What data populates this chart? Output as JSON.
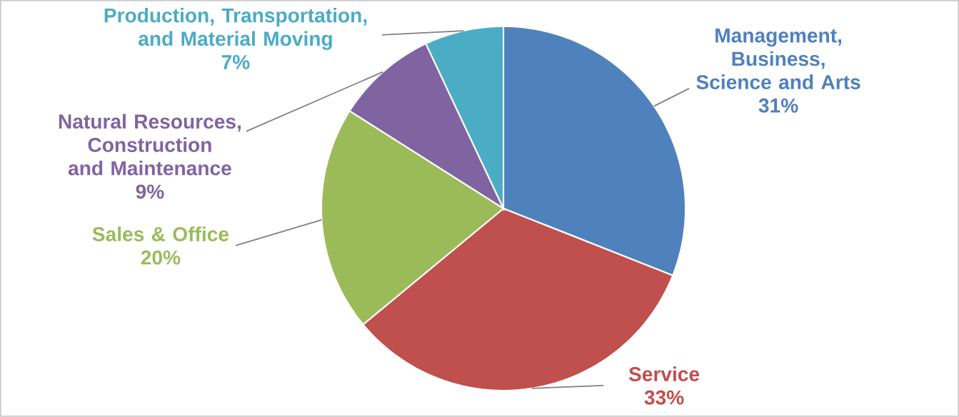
{
  "chart_data": {
    "type": "pie",
    "categories": [
      "Management, Business, Science and Arts",
      "Service",
      "Sales & Office",
      "Natural Resources, Construction and Maintenance",
      "Production, Transportation, and Material Moving"
    ],
    "values": [
      31,
      33,
      20,
      9,
      7
    ],
    "value_labels": [
      "31%",
      "33%",
      "20%",
      "9%",
      "7%"
    ],
    "colors": [
      "#4f81bd",
      "#c0504d",
      "#9bbb59",
      "#8064a2",
      "#4bacc6"
    ]
  }
}
